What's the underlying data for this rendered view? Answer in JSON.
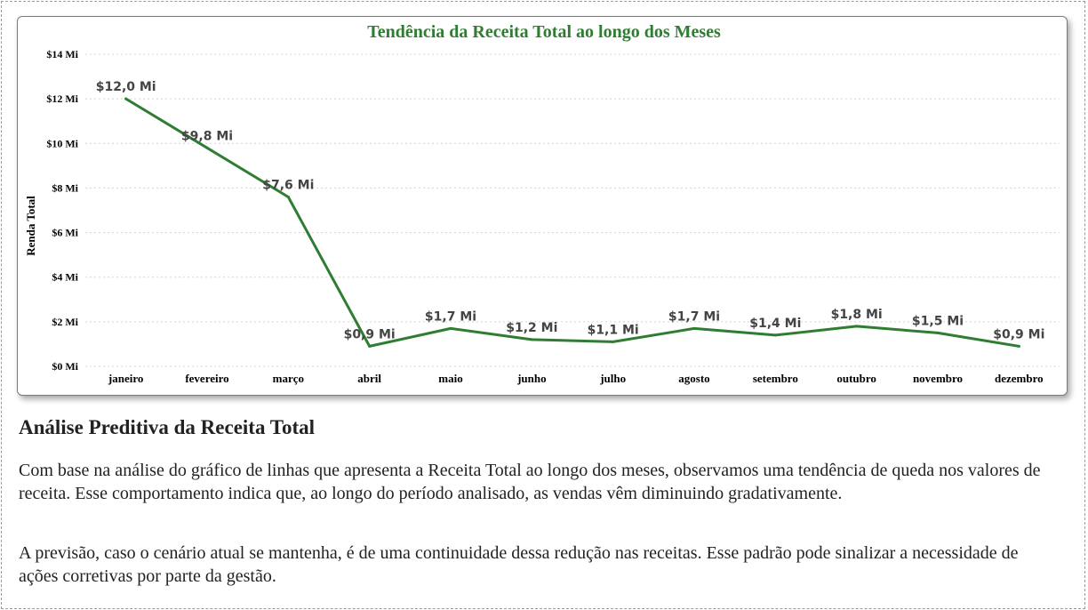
{
  "chart_data": {
    "type": "line",
    "title": "Tendência da Receita Total ao longo dos Meses",
    "xlabel": "",
    "ylabel": "Renda Total",
    "ylim": [
      0,
      14
    ],
    "y_ticks": [
      "$0 Mi",
      "$2 Mi",
      "$4 Mi",
      "$6 Mi",
      "$8 Mi",
      "$10 Mi",
      "$12 Mi",
      "$14 Mi"
    ],
    "grid": true,
    "categories": [
      "janeiro",
      "fevereiro",
      "março",
      "abril",
      "maio",
      "junho",
      "julho",
      "agosto",
      "setembro",
      "outubro",
      "novembro",
      "dezembro"
    ],
    "series": [
      {
        "values": [
          12.0,
          9.8,
          7.6,
          0.9,
          1.7,
          1.2,
          1.1,
          1.7,
          1.4,
          1.8,
          1.5,
          0.9
        ],
        "labels": [
          "$12,0 Mi",
          "$9,8 Mi",
          "$7,6 Mi",
          "$0,9 Mi",
          "$1,7 Mi",
          "$1,2 Mi",
          "$1,1 Mi",
          "$1,7 Mi",
          "$1,4 Mi",
          "$1,8 Mi",
          "$1,5 Mi",
          "$0,9 Mi"
        ],
        "color": "#2e7d32"
      }
    ],
    "title_color": "#2e7d32"
  },
  "analysis": {
    "heading": "Análise Preditiva da Receita Total",
    "paragraph1": "Com base na análise do gráfico de linhas que apresenta a Receita Total ao longo dos meses, observamos uma tendência de queda nos valores de receita. Esse comportamento indica que, ao longo do período analisado, as vendas vêm diminuindo gradativamente.",
    "paragraph2": "A previsão, caso o cenário atual se mantenha, é de uma continuidade dessa redução nas receitas. Esse padrão pode sinalizar a necessidade de ações corretivas por parte da gestão."
  }
}
